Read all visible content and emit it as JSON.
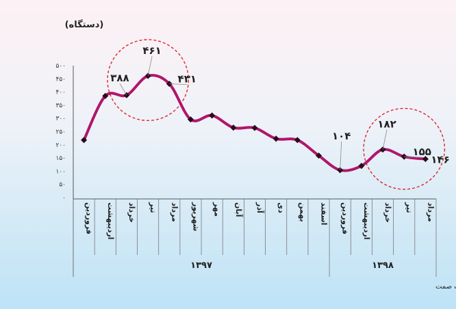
{
  "chart_data": {
    "type": "line",
    "unit_label": "(دستگاه)",
    "ylim": [
      0,
      500
    ],
    "y_ticks": [
      "۵۰۰",
      "۴۵۰",
      "۴۰۰",
      "۳۵۰",
      "۳۰۰",
      "۲۵۰",
      "۲۰۰",
      "۱۵۰",
      "۱۰۰",
      "۵۰",
      "۰"
    ],
    "y_tick_values": [
      500,
      450,
      400,
      350,
      300,
      250,
      200,
      150,
      100,
      50,
      0
    ],
    "categories": [
      "فروردین",
      "اردیبهشت",
      "خرداد",
      "تیر",
      "مرداد",
      "شهریور",
      "مهر",
      "آبان",
      "آذر",
      "دی",
      "بهمن",
      "اسفند",
      "فروردین",
      "اردیبهشت",
      "خرداد",
      "تیر",
      "مرداد"
    ],
    "values": [
      218,
      385,
      388,
      461,
      431,
      296,
      311,
      265,
      264,
      223,
      218,
      159,
      104,
      120,
      182,
      155,
      146
    ],
    "year_groups": [
      {
        "label": "۱۳۹۷",
        "start": 0,
        "end": 11
      },
      {
        "label": "۱۳۹۸",
        "start": 12,
        "end": 16
      }
    ],
    "data_labels": [
      {
        "index": 2,
        "text": "۳۸۸"
      },
      {
        "index": 3,
        "text": "۴۶۱"
      },
      {
        "index": 4,
        "text": "۴۳۱"
      },
      {
        "index": 12,
        "text": "۱۰۴"
      },
      {
        "index": 14,
        "text": "۱۸۲"
      },
      {
        "index": 15,
        "text": "۱۵۵"
      },
      {
        "index": 16,
        "text": "۱۴۶"
      }
    ],
    "highlight_circles": [
      {
        "around_indices": [
          2,
          3,
          4
        ]
      },
      {
        "around_indices": [
          14,
          15,
          16
        ]
      }
    ],
    "line_color": "#b0166b",
    "marker_color": "#2b0a1a",
    "highlight_color": "#e0242a",
    "grid": false,
    "legend": "none"
  },
  "source": "منبع داده‌ها: وزارت صمت"
}
